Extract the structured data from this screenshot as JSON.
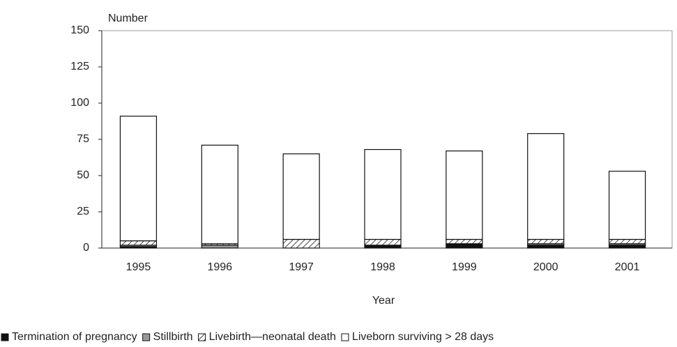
{
  "chart_data": {
    "type": "stacked-bar",
    "y_label": "Number",
    "x_label": "Year",
    "categories": [
      "1995",
      "1996",
      "1997",
      "1998",
      "1999",
      "2000",
      "2001"
    ],
    "series": [
      {
        "name": "Termination of pregnancy",
        "color": "#111111",
        "values": [
          1,
          0,
          0,
          2,
          3,
          2,
          2
        ]
      },
      {
        "name": "Stillbirth",
        "color": "#999999",
        "values": [
          1,
          2,
          0,
          0,
          0,
          1,
          1
        ]
      },
      {
        "name": "Livebirth—neonatal death",
        "color": "#ffffff",
        "pattern": "hatch",
        "values": [
          3,
          1,
          6,
          4,
          3,
          3,
          3
        ]
      },
      {
        "name": "Liveborn surviving > 28 days",
        "color": "#ffffff",
        "values": [
          86,
          68,
          59,
          62,
          61,
          73,
          47
        ]
      }
    ],
    "ylim": [
      0,
      150
    ],
    "yticks": [
      0,
      25,
      50,
      75,
      100,
      125,
      150
    ],
    "legend": "bottom"
  }
}
